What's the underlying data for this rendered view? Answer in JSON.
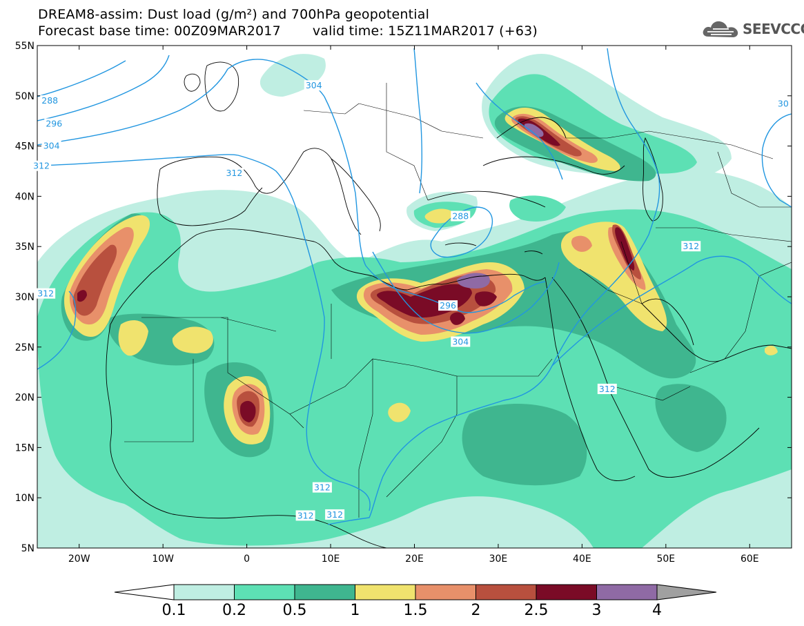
{
  "header": {
    "title_line1": "DREAM8-assim: Dust load (g/m²) and 700hPa geopotential",
    "base_label": "Forecast base time: 00Z09MAR2017",
    "valid_label": "valid time: 15Z11MAR2017 (+63)",
    "logo_text": "SEEVCCC"
  },
  "map": {
    "lon_range": [
      -25,
      65
    ],
    "lat_range": [
      5,
      55
    ],
    "lat_ticks": [
      {
        "value": 55,
        "label": "55N"
      },
      {
        "value": 50,
        "label": "50N"
      },
      {
        "value": 45,
        "label": "45N"
      },
      {
        "value": 40,
        "label": "40N"
      },
      {
        "value": 35,
        "label": "35N"
      },
      {
        "value": 30,
        "label": "30N"
      },
      {
        "value": 25,
        "label": "25N"
      },
      {
        "value": 20,
        "label": "20N"
      },
      {
        "value": 15,
        "label": "15N"
      },
      {
        "value": 10,
        "label": "10N"
      },
      {
        "value": 5,
        "label": "5N"
      }
    ],
    "lon_ticks": [
      {
        "value": -20,
        "label": "20W"
      },
      {
        "value": -10,
        "label": "10W"
      },
      {
        "value": 0,
        "label": "0"
      },
      {
        "value": 10,
        "label": "10E"
      },
      {
        "value": 20,
        "label": "20E"
      },
      {
        "value": 30,
        "label": "30E"
      },
      {
        "value": 40,
        "label": "40E"
      },
      {
        "value": 50,
        "label": "50E"
      },
      {
        "value": 60,
        "label": "60E"
      }
    ],
    "contour_color": "#2196e0",
    "contour_labels": [
      {
        "text": "288",
        "lon": -23.5,
        "lat": 49.5
      },
      {
        "text": "296",
        "lon": -23.0,
        "lat": 47.2
      },
      {
        "text": "304",
        "lon": -23.3,
        "lat": 45.0
      },
      {
        "text": "312",
        "lon": -24.5,
        "lat": 43.0
      },
      {
        "text": "312",
        "lon": -1.5,
        "lat": 42.3
      },
      {
        "text": "304",
        "lon": 8.0,
        "lat": 51.0
      },
      {
        "text": "312",
        "lon": -24.0,
        "lat": 30.3
      },
      {
        "text": "288",
        "lon": 25.5,
        "lat": 38.0
      },
      {
        "text": "296",
        "lon": 24.0,
        "lat": 29.1
      },
      {
        "text": "304",
        "lon": 25.5,
        "lat": 25.5
      },
      {
        "text": "312",
        "lon": 53.0,
        "lat": 35.0
      },
      {
        "text": "312",
        "lon": 43.0,
        "lat": 20.8
      },
      {
        "text": "312",
        "lon": 9.0,
        "lat": 11.0
      },
      {
        "text": "312",
        "lon": 7.0,
        "lat": 8.2
      },
      {
        "text": "312",
        "lon": 10.5,
        "lat": 8.3
      },
      {
        "text": "30",
        "lon": 64.0,
        "lat": 49.2
      }
    ]
  },
  "legend": {
    "levels": [
      "0.1",
      "0.2",
      "0.5",
      "1",
      "1.5",
      "2",
      "2.5",
      "3",
      "4"
    ],
    "colors": [
      "#bfeee2",
      "#5de0b4",
      "#3fb68f",
      "#f0e36e",
      "#e8906a",
      "#b8503e",
      "#7a0b26",
      "#8f6aa5"
    ],
    "below_color": "#ffffff",
    "above_color": "#a0a0a0"
  }
}
